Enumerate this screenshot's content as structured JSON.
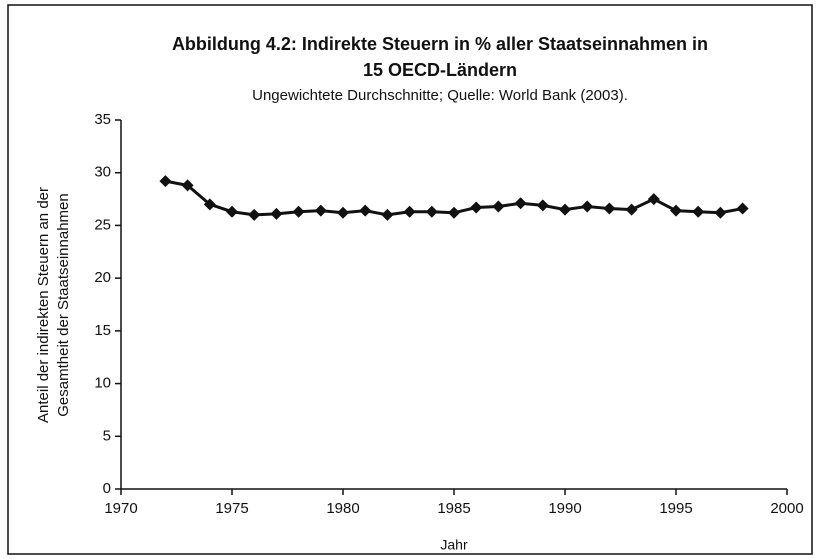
{
  "chart_data": {
    "type": "line",
    "title": [
      "Abbildung 4.2: Indirekte Steuern in % aller Staatseinnahmen in",
      "15 OECD-Ländern"
    ],
    "subtitle": "Ungewichtete Durchschnitte; Quelle: World Bank (2003).",
    "x_label": "Jahr",
    "y_label": [
      "Anteil der indirekten Steuern an der",
      "Gesamtheit der Staatseinnahmen"
    ],
    "x": [
      1972,
      1973,
      1974,
      1975,
      1976,
      1977,
      1978,
      1979,
      1980,
      1981,
      1982,
      1983,
      1984,
      1985,
      1986,
      1987,
      1988,
      1989,
      1990,
      1991,
      1992,
      1993,
      1994,
      1995,
      1996,
      1997,
      1998
    ],
    "series": [
      {
        "color": "#111111",
        "values": [
          29.2,
          28.8,
          27.0,
          26.3,
          26.0,
          26.1,
          26.3,
          26.4,
          26.2,
          26.4,
          26.0,
          26.3,
          26.3,
          26.2,
          26.7,
          26.8,
          27.1,
          26.9,
          26.5,
          26.8,
          26.6,
          26.5,
          27.5,
          26.4,
          26.3,
          26.2,
          26.6
        ]
      }
    ],
    "xlim": [
      1970,
      2000
    ],
    "xticks": [
      1970,
      1975,
      1980,
      1985,
      1990,
      1995,
      2000
    ],
    "ylim": [
      0,
      35
    ],
    "yticks": [
      0,
      5,
      10,
      15,
      20,
      25,
      30,
      35
    ],
    "grid": false
  }
}
